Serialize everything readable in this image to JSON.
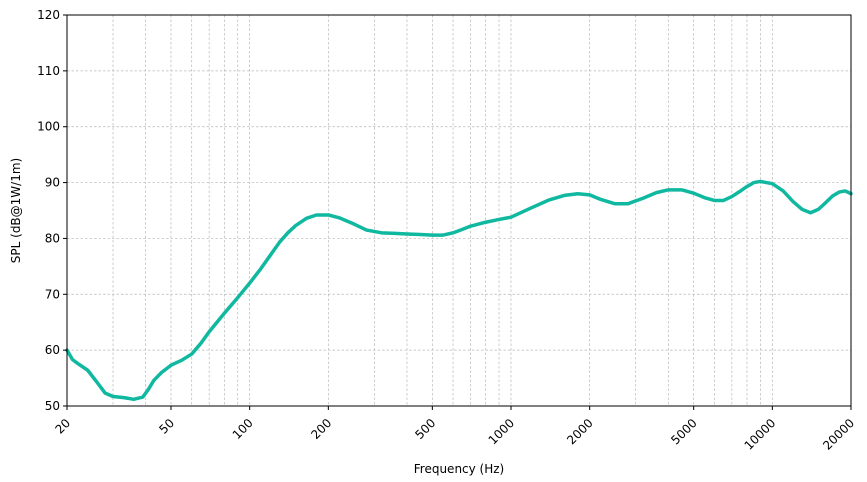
{
  "chart_data": {
    "type": "line",
    "title": "",
    "xlabel": "Frequency (Hz)",
    "ylabel": "SPL (dB@1W/1m)",
    "xscale": "log",
    "xlim": [
      20,
      20000
    ],
    "ylim": [
      50,
      120
    ],
    "xticks": [
      20,
      50,
      100,
      200,
      500,
      1000,
      2000,
      5000,
      10000,
      20000
    ],
    "xtick_labels": [
      "20",
      "50",
      "100",
      "200",
      "500",
      "1000",
      "2000",
      "5000",
      "10000",
      "20000"
    ],
    "yticks": [
      50,
      60,
      70,
      80,
      90,
      100,
      110,
      120
    ],
    "ytick_labels": [
      "50",
      "60",
      "70",
      "80",
      "90",
      "100",
      "110",
      "120"
    ],
    "grid": true,
    "grid_minor": true,
    "line_color": "#10b8a0",
    "series": [
      {
        "x": [
          20,
          21,
          22,
          24,
          26,
          28,
          30,
          33,
          36,
          39,
          41,
          43,
          46,
          50,
          55,
          60,
          65,
          70,
          80,
          90,
          100,
          110,
          120,
          130,
          140,
          150,
          165,
          180,
          200,
          220,
          250,
          280,
          320,
          360,
          400,
          450,
          500,
          550,
          600,
          650,
          700,
          800,
          900,
          1000,
          1200,
          1400,
          1600,
          1800,
          2000,
          2200,
          2500,
          2800,
          3200,
          3600,
          4000,
          4500,
          5000,
          5500,
          6000,
          6500,
          7000,
          7500,
          8000,
          8500,
          9000,
          10000,
          11000,
          12000,
          13000,
          14000,
          15000,
          16000,
          17000,
          18000,
          19000,
          20000
        ],
        "y": [
          60.0,
          58.3,
          57.6,
          56.4,
          54.3,
          52.3,
          51.7,
          51.5,
          51.2,
          51.6,
          53.0,
          54.6,
          56.0,
          57.3,
          58.2,
          59.3,
          61.2,
          63.3,
          66.6,
          69.4,
          72.0,
          74.5,
          77.0,
          79.3,
          81.0,
          82.3,
          83.6,
          84.2,
          84.2,
          83.7,
          82.6,
          81.5,
          81.0,
          80.9,
          80.8,
          80.7,
          80.6,
          80.6,
          81.0,
          81.6,
          82.2,
          82.9,
          83.4,
          83.8,
          85.5,
          86.9,
          87.7,
          88.0,
          87.8,
          87.0,
          86.2,
          86.2,
          87.2,
          88.2,
          88.7,
          88.7,
          88.1,
          87.3,
          86.8,
          86.8,
          87.5,
          88.4,
          89.3,
          90.0,
          90.2,
          89.8,
          88.5,
          86.6,
          85.2,
          84.6,
          85.2,
          86.4,
          87.6,
          88.3,
          88.5,
          88.0
        ]
      }
    ]
  }
}
